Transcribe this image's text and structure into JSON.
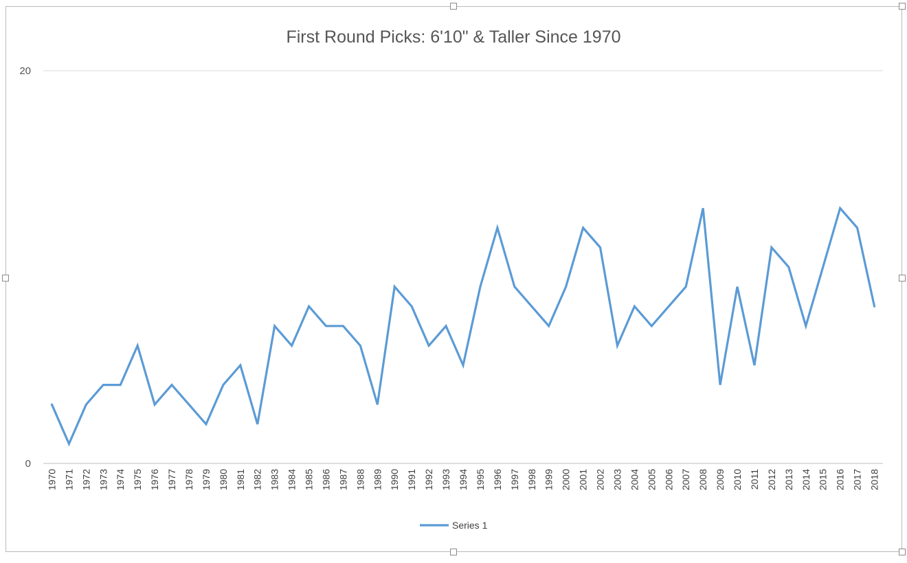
{
  "chart_data": {
    "type": "line",
    "title": "First Round Picks: 6'10\" & Taller Since 1970",
    "xlabel": "",
    "ylabel": "",
    "ylim": [
      0,
      20
    ],
    "yticks": [
      "0",
      "20"
    ],
    "grid": true,
    "legend_position": "bottom",
    "categories": [
      "1970",
      "1971",
      "1972",
      "1973",
      "1974",
      "1975",
      "1976",
      "1977",
      "1978",
      "1979",
      "1980",
      "1981",
      "1982",
      "1983",
      "1984",
      "1985",
      "1986",
      "1987",
      "1988",
      "1989",
      "1990",
      "1991",
      "1992",
      "1993",
      "1994",
      "1995",
      "1996",
      "1997",
      "1998",
      "1999",
      "2000",
      "2001",
      "2002",
      "2003",
      "2004",
      "2005",
      "2006",
      "2007",
      "2008",
      "2009",
      "2010",
      "2011",
      "2012",
      "2013",
      "2014",
      "2015",
      "2016",
      "2017",
      "2018"
    ],
    "series": [
      {
        "name": "Series 1",
        "color": "#5b9bd5",
        "values": [
          3,
          1,
          3,
          4,
          4,
          6,
          3,
          4,
          3,
          2,
          4,
          5,
          2,
          7,
          6,
          8,
          7,
          7,
          6,
          3,
          9,
          8,
          6,
          7,
          5,
          9,
          12,
          9,
          8,
          7,
          9,
          12,
          11,
          6,
          8,
          7,
          8,
          9,
          13,
          4,
          9,
          5,
          11,
          10,
          7,
          10,
          13,
          12,
          8
        ]
      }
    ]
  }
}
